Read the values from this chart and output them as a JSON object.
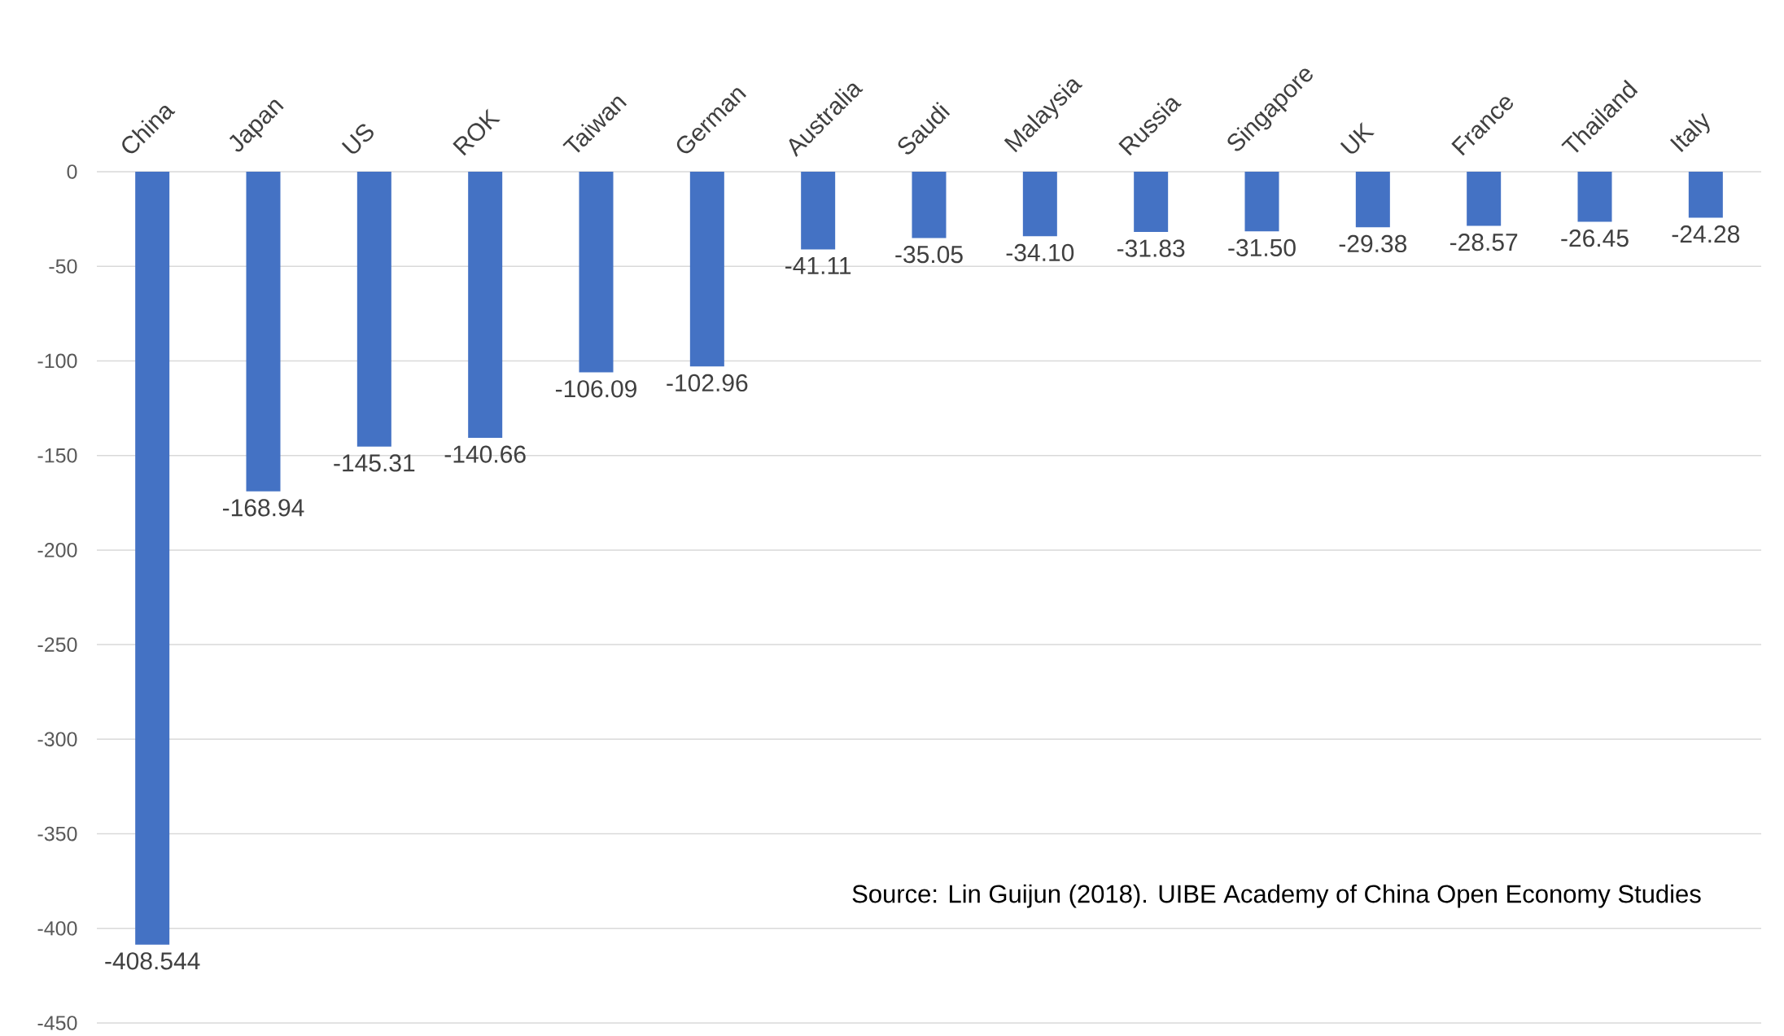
{
  "chart_data": {
    "type": "bar",
    "categories": [
      "China",
      "Japan",
      "US",
      "ROK",
      "Taiwan",
      "German",
      "Australia",
      "Saudi",
      "Malaysia",
      "Russia",
      "Singapore",
      "UK",
      "France",
      "Thailand",
      "Italy"
    ],
    "values": [
      -408.544,
      -168.94,
      -145.31,
      -140.66,
      -106.09,
      -102.96,
      -41.11,
      -35.05,
      -34.1,
      -31.83,
      -31.5,
      -29.38,
      -28.57,
      -26.45,
      -24.28
    ],
    "value_labels": [
      "-408.544",
      "-168.94",
      "-145.31",
      "-140.66",
      "-106.09",
      "-102.96",
      "-41.11",
      "-35.05",
      "-34.10",
      "-31.83",
      "-31.50",
      "-29.38",
      "-28.57",
      "-26.45",
      "-24.28"
    ],
    "color": "#4472c4",
    "ylim": [
      -450,
      0
    ],
    "yticks": [
      -450,
      -400,
      -350,
      -300,
      -250,
      -200,
      -150,
      -100,
      -50,
      0
    ],
    "grid": "y",
    "annotations": [
      "Source: Lin Guijun (2018). UIBE Academy of China Open Economy Studies"
    ]
  }
}
